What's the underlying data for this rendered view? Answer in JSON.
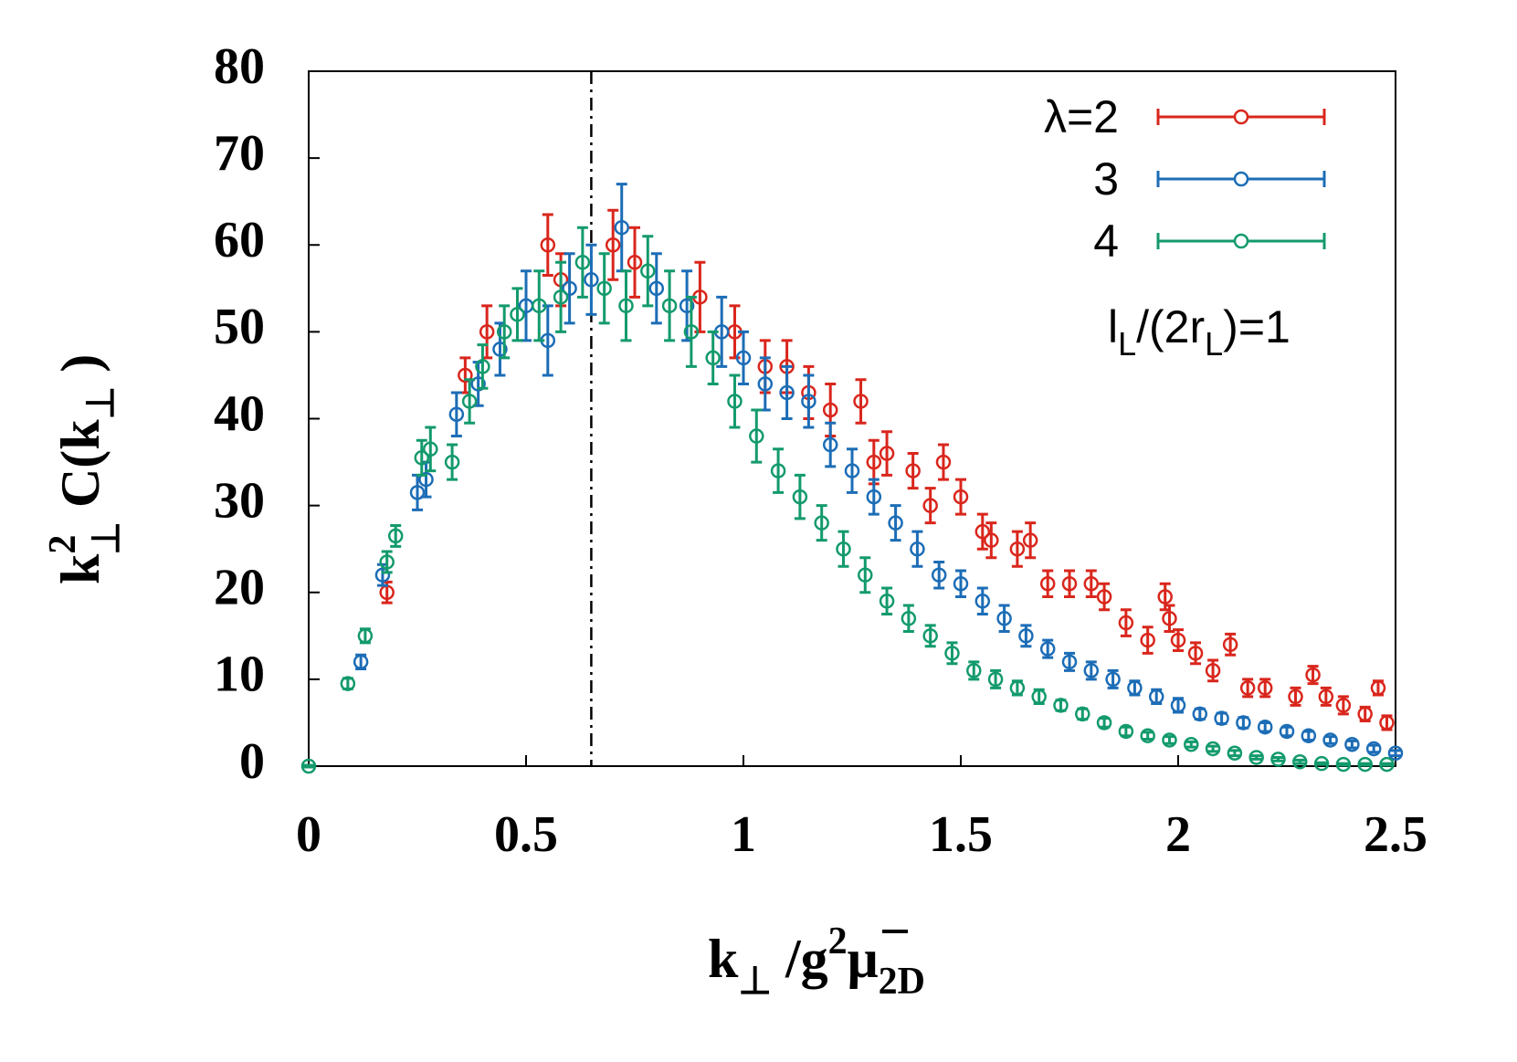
{
  "chart_data": {
    "type": "scatter",
    "x_label": [
      "k",
      "⊥",
      " /g",
      "2",
      "μ",
      "2D"
    ],
    "y_label": [
      "k",
      "2",
      "⊥",
      "  C(k",
      "⊥",
      " )"
    ],
    "annotation": [
      "l",
      "L",
      "/(2r",
      "L",
      ")=1"
    ],
    "xlim": [
      0,
      2.5
    ],
    "ylim": [
      0,
      80
    ],
    "xticks": [
      0,
      0.5,
      1,
      1.5,
      2,
      2.5
    ],
    "yticks": [
      0,
      10,
      20,
      30,
      40,
      50,
      60,
      70,
      80
    ],
    "vline": 0.65,
    "series": [
      {
        "name": "λ=2",
        "color": "#d9261c",
        "x": [
          0.18,
          0.36,
          0.41,
          0.55,
          0.58,
          0.7,
          0.75,
          0.9,
          0.98,
          1.05,
          1.1,
          1.15,
          1.2,
          1.27,
          1.3,
          1.33,
          1.39,
          1.43,
          1.46,
          1.5,
          1.55,
          1.57,
          1.63,
          1.66,
          1.7,
          1.75,
          1.8,
          1.83,
          1.88,
          1.93,
          1.97,
          1.98,
          2.0,
          2.04,
          2.08,
          2.12,
          2.16,
          2.2,
          2.27,
          2.31,
          2.34,
          2.38,
          2.43,
          2.46,
          2.48
        ],
        "values": [
          20,
          45,
          50,
          60,
          56,
          60,
          58,
          54,
          50,
          46,
          46,
          43,
          41,
          42,
          35,
          36,
          34,
          30,
          35,
          31,
          27,
          26,
          25,
          26,
          21,
          21,
          21,
          19.5,
          16.5,
          14.5,
          19.5,
          17,
          14.5,
          13,
          11,
          14,
          9,
          9,
          8,
          10.5,
          8,
          7,
          6,
          9,
          5
        ],
        "errors": [
          1.2,
          2,
          3,
          3.5,
          3,
          4,
          4,
          4,
          3,
          3,
          3,
          3,
          3,
          2.5,
          2.5,
          2.5,
          2,
          2,
          2,
          2,
          2,
          2,
          2,
          2,
          1.5,
          1.5,
          1.5,
          1.5,
          1.5,
          1.5,
          1.5,
          1.5,
          1.2,
          1.2,
          1.2,
          1.2,
          1,
          1,
          1,
          1,
          1,
          1,
          0.8,
          0.8,
          0.8
        ]
      },
      {
        "name": "3",
        "color": "#1c6db6",
        "x": [
          0.12,
          0.17,
          0.25,
          0.27,
          0.34,
          0.39,
          0.44,
          0.5,
          0.55,
          0.6,
          0.65,
          0.72,
          0.8,
          0.87,
          0.95,
          1.0,
          1.05,
          1.1,
          1.15,
          1.2,
          1.25,
          1.3,
          1.35,
          1.4,
          1.45,
          1.5,
          1.55,
          1.6,
          1.65,
          1.7,
          1.75,
          1.8,
          1.85,
          1.9,
          1.95,
          2.0,
          2.05,
          2.1,
          2.15,
          2.2,
          2.25,
          2.3,
          2.35,
          2.4,
          2.45,
          2.5
        ],
        "values": [
          12,
          22,
          31.5,
          33,
          40.5,
          44,
          48,
          53,
          49,
          55,
          56,
          62,
          55,
          53,
          50,
          47,
          44,
          43,
          42,
          37,
          34,
          31,
          28,
          25,
          22,
          21,
          19,
          17,
          15,
          13.5,
          12,
          11,
          10,
          9,
          8,
          7,
          6,
          5.5,
          5,
          4.5,
          4,
          3.5,
          3,
          2.5,
          2,
          1.5
        ],
        "errors": [
          0.8,
          1.2,
          2,
          2,
          2.5,
          2.5,
          3,
          4,
          4,
          4,
          4,
          5,
          4,
          4,
          4,
          3,
          3,
          3,
          3,
          2.5,
          2.5,
          2,
          2,
          2,
          1.5,
          1.5,
          1.5,
          1.5,
          1.2,
          1,
          1,
          1,
          1,
          0.8,
          0.8,
          0.8,
          0.6,
          0.6,
          0.6,
          0.5,
          0.5,
          0.5,
          0.4,
          0.4,
          0.4,
          0.3
        ]
      },
      {
        "name": "4",
        "color": "#139a6c",
        "x": [
          0,
          0.09,
          0.13,
          0.18,
          0.2,
          0.26,
          0.28,
          0.33,
          0.37,
          0.4,
          0.45,
          0.48,
          0.53,
          0.58,
          0.63,
          0.68,
          0.73,
          0.78,
          0.83,
          0.88,
          0.93,
          0.98,
          1.03,
          1.08,
          1.13,
          1.18,
          1.23,
          1.28,
          1.33,
          1.38,
          1.43,
          1.48,
          1.53,
          1.58,
          1.63,
          1.68,
          1.73,
          1.78,
          1.83,
          1.88,
          1.93,
          1.98,
          2.03,
          2.08,
          2.13,
          2.18,
          2.23,
          2.28,
          2.33,
          2.38,
          2.43,
          2.48
        ],
        "values": [
          0,
          9.5,
          15,
          23.5,
          26.5,
          35.5,
          36.5,
          35,
          42,
          46,
          50,
          52,
          53,
          54,
          58,
          55,
          53,
          57,
          53,
          50,
          47,
          42,
          38,
          34,
          31,
          28,
          25,
          22,
          19,
          17,
          15,
          13,
          11,
          10,
          9,
          8,
          7,
          6,
          5,
          4,
          3.5,
          3,
          2.5,
          2,
          1.5,
          1,
          0.8,
          0.5,
          0.3,
          0.2,
          0.2,
          0.2
        ],
        "errors": [
          0.1,
          0.6,
          0.8,
          1.2,
          1.2,
          2,
          2.5,
          2,
          2.5,
          2.5,
          3,
          3,
          4,
          4,
          4,
          4,
          4,
          4,
          4,
          4,
          3,
          3,
          3,
          2.5,
          2.5,
          2,
          2,
          2,
          1.5,
          1.5,
          1.2,
          1.2,
          1,
          1,
          0.8,
          0.8,
          0.6,
          0.6,
          0.5,
          0.5,
          0.4,
          0.4,
          0.3,
          0.3,
          0.3,
          0.2,
          0.2,
          0.2,
          0.1,
          0.1,
          0.1,
          0.1
        ]
      }
    ]
  }
}
